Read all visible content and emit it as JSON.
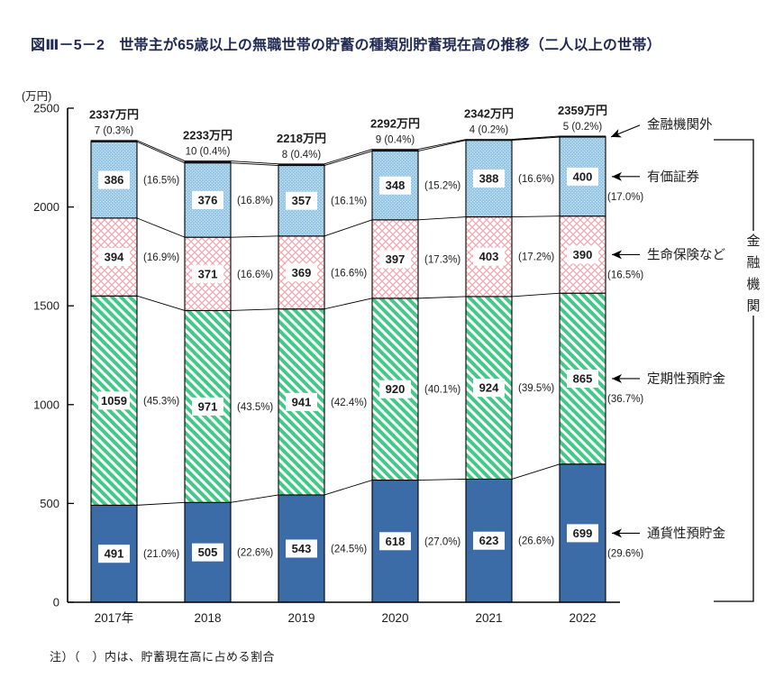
{
  "page": {
    "title": "図Ⅲ－5－2　世帯主が65歳以上の無職世帯の貯蓄の種類別貯蓄現在高の推移（二人以上の世帯）",
    "unit_label": "(万円)",
    "note": "注）（　）内は、貯蓄現在高に占める割合"
  },
  "chart_data": {
    "type": "bar",
    "subtype": "stacked-column",
    "title": "世帯主が65歳以上の無職世帯の貯蓄の種類別貯蓄現在高の推移（二人以上の世帯）",
    "ylabel": "(万円)",
    "ylim": [
      0,
      2500
    ],
    "yticks": [
      0,
      500,
      1000,
      1500,
      2000,
      2500
    ],
    "grid": false,
    "legend_position": "right-arrow-annotations",
    "categories": [
      "2017年",
      "2018",
      "2019",
      "2020",
      "2021",
      "2022"
    ],
    "totals": [
      "2337万円",
      "2233万円",
      "2218万円",
      "2292万円",
      "2342万円",
      "2359万円"
    ],
    "series": [
      {
        "name": "通貨性預貯金",
        "key": "currency-deposits",
        "style": "solid-blue",
        "values": [
          491,
          505,
          543,
          618,
          623,
          699
        ],
        "pcts": [
          "(21.0%)",
          "(22.6%)",
          "(24.5%)",
          "(27.0%)",
          "(26.6%)",
          "(29.6%)"
        ]
      },
      {
        "name": "定期性預貯金",
        "key": "time-deposits",
        "style": "green-diagonal-hatch",
        "values": [
          1059,
          971,
          941,
          920,
          924,
          865
        ],
        "pcts": [
          "(45.3%)",
          "(43.5%)",
          "(42.4%)",
          "(40.1%)",
          "(39.5%)",
          "(36.7%)"
        ]
      },
      {
        "name": "生命保険など",
        "key": "life-insurance",
        "style": "pink-crosshatch",
        "values": [
          394,
          371,
          369,
          397,
          403,
          390
        ],
        "pcts": [
          "(16.9%)",
          "(16.6%)",
          "(16.6%)",
          "(17.3%)",
          "(17.2%)",
          "(16.5%)"
        ]
      },
      {
        "name": "有価証券",
        "key": "securities",
        "style": "lightblue-dots",
        "values": [
          386,
          376,
          357,
          348,
          388,
          400
        ],
        "pcts": [
          "(16.5%)",
          "(16.8%)",
          "(16.1%)",
          "(15.2%)",
          "(16.6%)",
          "(17.0%)"
        ]
      },
      {
        "name": "金融機関外",
        "key": "outside-financial-institutions",
        "style": "dark-sliver",
        "values": [
          7,
          10,
          8,
          9,
          4,
          5
        ],
        "pcts": [
          "(0.3%)",
          "(0.4%)",
          "(0.4%)",
          "(0.4%)",
          "(0.2%)",
          "(0.2%)"
        ]
      }
    ],
    "bracket_label": "金融機関",
    "colors": {
      "currency_deposits": "#3c6ca8",
      "time_deposits_hatch": "#44c888",
      "life_insurance_hatch": "#f2a8b2",
      "securities_fill": "#8ec2e4",
      "outside_fill": "#1c1c1c",
      "line": "#000000",
      "title_text": "#202a52"
    }
  }
}
